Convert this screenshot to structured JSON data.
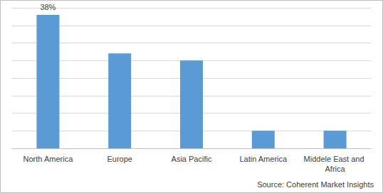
{
  "chart_data": {
    "type": "bar",
    "categories": [
      "North America",
      "Europe",
      "Asia Pacific",
      "Latin America",
      "Middele East and Africa"
    ],
    "values": [
      38,
      27,
      25,
      5,
      5
    ],
    "value_labels": [
      "38%",
      null,
      null,
      null,
      null
    ],
    "color": "#5b9bd5",
    "ylim": [
      0,
      40
    ],
    "yticks": [
      0,
      5,
      10,
      15,
      20,
      25,
      30,
      35,
      40
    ],
    "grid": true,
    "tick_labels": "x",
    "data_labels": true,
    "source": "Source: Coherent Market Insights"
  }
}
